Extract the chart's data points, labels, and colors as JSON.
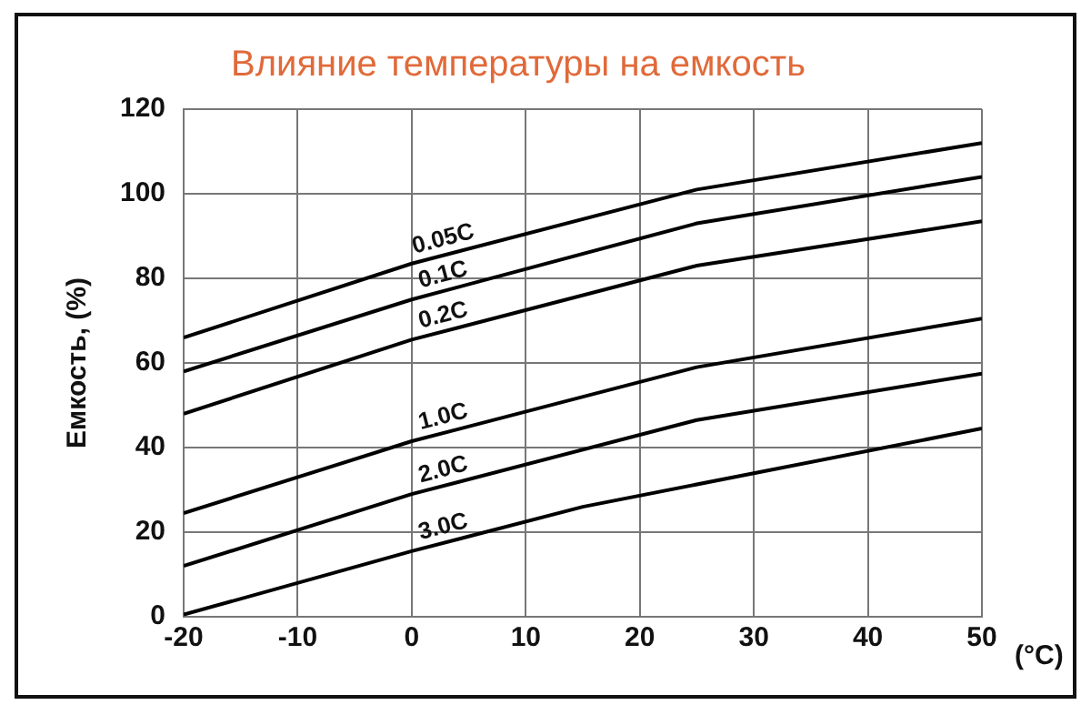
{
  "chart_data": {
    "type": "line",
    "title": "Влияние температуры на емкость",
    "xlabel": "(°C)",
    "ylabel": "Емкость, (%)",
    "xlim": [
      -20,
      50
    ],
    "xticks": [
      -20,
      -10,
      0,
      10,
      20,
      30,
      40,
      50
    ],
    "ylim": [
      0,
      120
    ],
    "yticks": [
      0,
      20,
      40,
      60,
      80,
      100,
      120
    ],
    "grid": true,
    "legend": false,
    "marker": "none",
    "line_style": "solid",
    "series": [
      {
        "name": "0.05C",
        "color": "#000000",
        "x": [
          -20,
          0,
          25,
          50
        ],
        "values": [
          66,
          83.5,
          101,
          112
        ]
      },
      {
        "name": "0.1C",
        "color": "#000000",
        "x": [
          -20,
          0,
          25,
          50
        ],
        "values": [
          58,
          75,
          93,
          104
        ]
      },
      {
        "name": "0.2C",
        "color": "#000000",
        "x": [
          -20,
          0,
          25,
          50
        ],
        "values": [
          48,
          65.5,
          83,
          93.5
        ]
      },
      {
        "name": "1.0C",
        "color": "#000000",
        "x": [
          -20,
          0,
          25,
          50
        ],
        "values": [
          24.5,
          41.5,
          59,
          70.5
        ]
      },
      {
        "name": "2.0C",
        "color": "#000000",
        "x": [
          -20,
          0,
          25,
          50
        ],
        "values": [
          12,
          29,
          46.5,
          57.5
        ]
      },
      {
        "name": "3.0C",
        "color": "#000000",
        "x": [
          -20,
          0,
          15,
          50
        ],
        "values": [
          0.5,
          15.5,
          26,
          44.5
        ]
      }
    ]
  }
}
